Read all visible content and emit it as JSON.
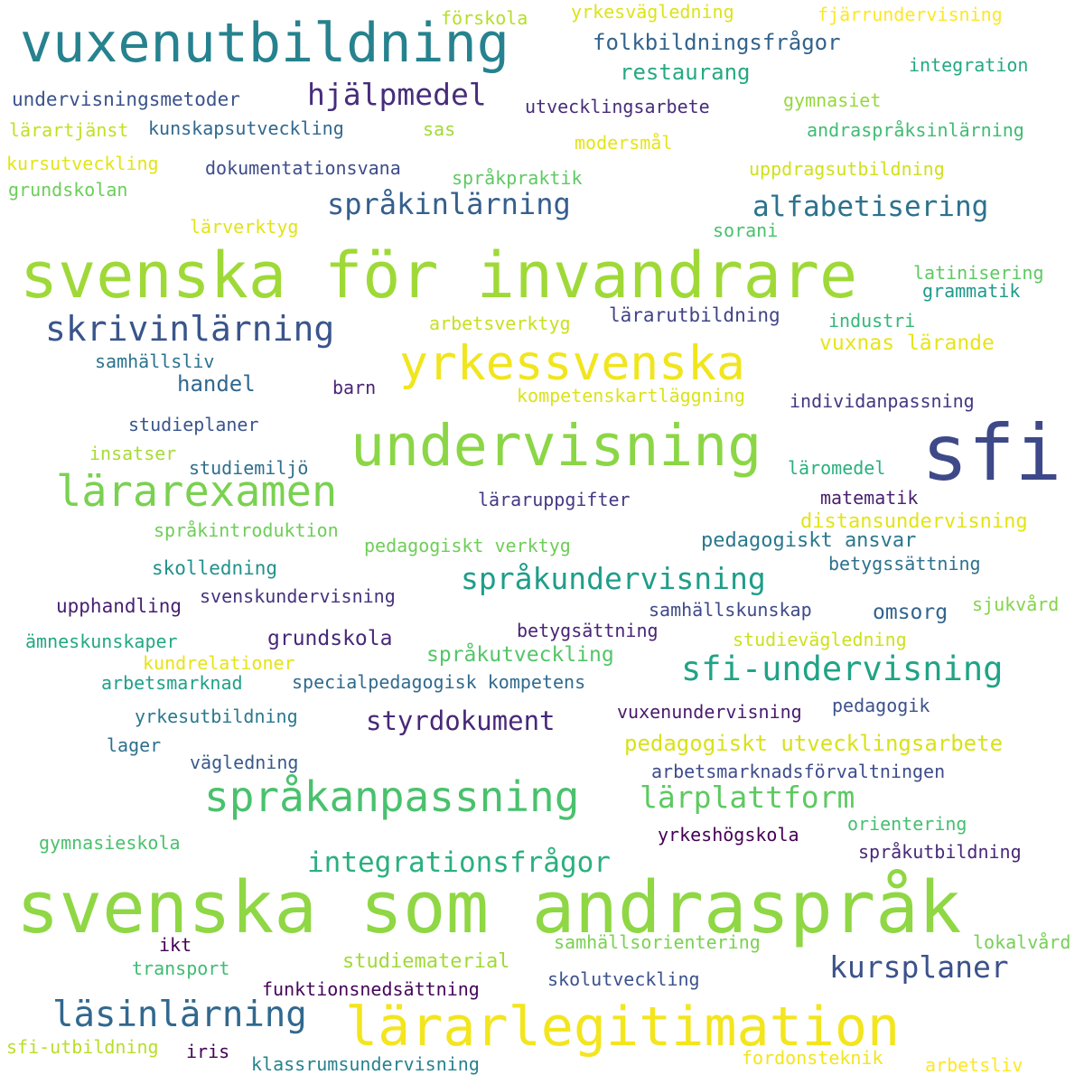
{
  "words": [
    {
      "text": "svenska som andraspråk",
      "color": "#8fd744"
    },
    {
      "text": "svenska för invandrare",
      "color": "#9fd938"
    },
    {
      "text": "sfi",
      "color": "#3e4989"
    },
    {
      "text": "vuxenutbildning",
      "color": "#26828e"
    },
    {
      "text": "lärarlegitimation",
      "color": "#f3e51e"
    },
    {
      "text": "undervisning",
      "color": "#8bd646"
    },
    {
      "text": "yrkessvenska",
      "color": "#f1e51d"
    },
    {
      "text": "språkanpassning",
      "color": "#4ac16d"
    },
    {
      "text": "lärarexamen",
      "color": "#7ad151"
    },
    {
      "text": "skrivinlärning",
      "color": "#39558c"
    },
    {
      "text": "läsinlärning",
      "color": "#31688e"
    },
    {
      "text": "språkundervisning",
      "color": "#1f9e89"
    },
    {
      "text": "sfi-undervisning",
      "color": "#20a386"
    },
    {
      "text": "lärplattform",
      "color": "#5ec962"
    },
    {
      "text": "hjälpmedel",
      "color": "#472d7b"
    },
    {
      "text": "kursplaner",
      "color": "#3b528b"
    },
    {
      "text": "språkinlärning",
      "color": "#355f8d"
    },
    {
      "text": "alfabetisering",
      "color": "#2c728e"
    },
    {
      "text": "integrationsfrågor",
      "color": "#2ab07f"
    },
    {
      "text": "styrdokument",
      "color": "#482878"
    },
    {
      "text": "pedagogiskt utvecklingsarbete",
      "color": "#d8e219"
    },
    {
      "text": "folkbildningsfrågor",
      "color": "#33638d"
    },
    {
      "text": "restaurang",
      "color": "#26a982"
    },
    {
      "text": "yrkesvägledning",
      "color": "#dde318"
    },
    {
      "text": "fjärrundervisning",
      "color": "#fde725"
    },
    {
      "text": "integration",
      "color": "#23a983"
    },
    {
      "text": "förskola",
      "color": "#b5de2b"
    },
    {
      "text": "undervisningsmetoder",
      "color": "#3b528b"
    },
    {
      "text": "utvecklingsarbete",
      "color": "#472d7b"
    },
    {
      "text": "gymnasiet",
      "color": "#95d840"
    },
    {
      "text": "lärartjänst",
      "color": "#c2df23"
    },
    {
      "text": "kunskapsutveckling",
      "color": "#31688e"
    },
    {
      "text": "sas",
      "color": "#a2da37"
    },
    {
      "text": "andraspråksinlärning",
      "color": "#3fbc73"
    },
    {
      "text": "modersmål",
      "color": "#e5e419"
    },
    {
      "text": "kursutveckling",
      "color": "#e2e418"
    },
    {
      "text": "dokumentationsvana",
      "color": "#3e4c8a"
    },
    {
      "text": "uppdragsutbildning",
      "color": "#d0e11c"
    },
    {
      "text": "språkpraktik",
      "color": "#5ec962"
    },
    {
      "text": "grundskolan",
      "color": "#6ccd5a"
    },
    {
      "text": "lärverktyg",
      "color": "#e2e418"
    },
    {
      "text": "sorani",
      "color": "#4ac16d"
    },
    {
      "text": "latinisering",
      "color": "#5ec962"
    },
    {
      "text": "grammatik",
      "color": "#1f9a8a"
    },
    {
      "text": "arbetsverktyg",
      "color": "#c8e020"
    },
    {
      "text": "lärarutbildning",
      "color": "#414487"
    },
    {
      "text": "industri",
      "color": "#35b779"
    },
    {
      "text": "vuxnas lärande",
      "color": "#e7e419"
    },
    {
      "text": "samhällsliv",
      "color": "#2c728e"
    },
    {
      "text": "handel",
      "color": "#31688e"
    },
    {
      "text": "barn",
      "color": "#482475"
    },
    {
      "text": "kompetenskartläggning",
      "color": "#dae319"
    },
    {
      "text": "individanpassning",
      "color": "#453781"
    },
    {
      "text": "studieplaner",
      "color": "#39558c"
    },
    {
      "text": "insatser",
      "color": "#a8db34"
    },
    {
      "text": "studiemiljö",
      "color": "#2e6e8e"
    },
    {
      "text": "läromedel",
      "color": "#2ab07f"
    },
    {
      "text": "läraruppgifter",
      "color": "#443983"
    },
    {
      "text": "matematik",
      "color": "#481f70"
    },
    {
      "text": "distansundervisning",
      "color": "#e2e418"
    },
    {
      "text": "språkintroduktion",
      "color": "#6ece58"
    },
    {
      "text": "pedagogiskt verktyg",
      "color": "#6ece58"
    },
    {
      "text": "pedagogiskt ansvar",
      "color": "#2a788e"
    },
    {
      "text": "skolledning",
      "color": "#21918c"
    },
    {
      "text": "betygssättning",
      "color": "#2d708e"
    },
    {
      "text": "upphandling",
      "color": "#481f70"
    },
    {
      "text": "svenskundervisning",
      "color": "#46327e"
    },
    {
      "text": "samhällskunskap",
      "color": "#3e4989"
    },
    {
      "text": "omsorg",
      "color": "#33638d"
    },
    {
      "text": "sjukvård",
      "color": "#84d44b"
    },
    {
      "text": "ämneskunskaper",
      "color": "#22a884"
    },
    {
      "text": "grundskola",
      "color": "#482878"
    },
    {
      "text": "betygsättning",
      "color": "#482475"
    },
    {
      "text": "studievägledning",
      "color": "#cde11d"
    },
    {
      "text": "kundrelationer",
      "color": "#e5e419"
    },
    {
      "text": "språkutveckling",
      "color": "#54c568"
    },
    {
      "text": "arbetsmarknad",
      "color": "#1fa088"
    },
    {
      "text": "specialpedagogisk kompetens",
      "color": "#306a8e"
    },
    {
      "text": "yrkesutbildning",
      "color": "#2a788e"
    },
    {
      "text": "vuxenundervisning",
      "color": "#481a6c"
    },
    {
      "text": "pedagogik",
      "color": "#3b528b"
    },
    {
      "text": "lager",
      "color": "#2d708e"
    },
    {
      "text": "vägledning",
      "color": "#38598c"
    },
    {
      "text": "arbetsmarknadsförvaltningen",
      "color": "#3e4c8a"
    },
    {
      "text": "orientering",
      "color": "#44bf70"
    },
    {
      "text": "yrkeshögskola",
      "color": "#440154"
    },
    {
      "text": "gymnasieskola",
      "color": "#4ac16d"
    },
    {
      "text": "språkutbildning",
      "color": "#482878"
    },
    {
      "text": "ikt",
      "color": "#440154"
    },
    {
      "text": "studiematerial",
      "color": "#a0da39"
    },
    {
      "text": "samhällsorientering",
      "color": "#7ad151"
    },
    {
      "text": "lokalvård",
      "color": "#75d054"
    },
    {
      "text": "transport",
      "color": "#3fbc73"
    },
    {
      "text": "funktionsnedsättning",
      "color": "#450559"
    },
    {
      "text": "skolutveckling",
      "color": "#3b528b"
    },
    {
      "text": "sfi-utbildning",
      "color": "#b8de29"
    },
    {
      "text": "iris",
      "color": "#440154"
    },
    {
      "text": "klassrumsundervisning",
      "color": "#26828e"
    },
    {
      "text": "fordonsteknik",
      "color": "#f1e51d"
    },
    {
      "text": "arbetsliv",
      "color": "#fde725"
    }
  ]
}
